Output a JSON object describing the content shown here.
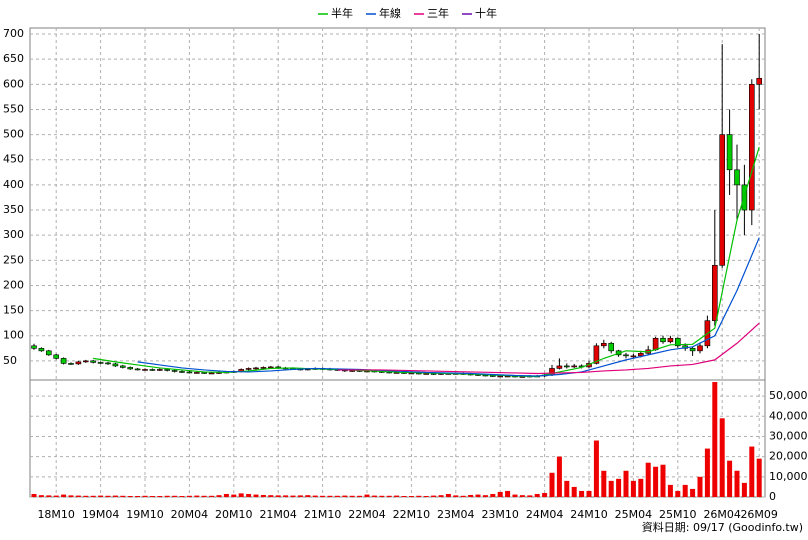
{
  "chart_data": {
    "type": "candlestick",
    "categories": [
      null,
      null,
      null,
      "18M10",
      null,
      null,
      null,
      null,
      null,
      "19M04",
      null,
      null,
      null,
      null,
      null,
      "19M10",
      null,
      null,
      null,
      null,
      null,
      "20M04",
      null,
      null,
      null,
      null,
      null,
      "20M10",
      null,
      null,
      null,
      null,
      null,
      "21M04",
      null,
      null,
      null,
      null,
      null,
      "21M10",
      null,
      null,
      null,
      null,
      null,
      "22M04",
      null,
      null,
      null,
      null,
      null,
      "22M10",
      null,
      null,
      null,
      null,
      null,
      "23M04",
      null,
      null,
      null,
      null,
      null,
      "23M10",
      null,
      null,
      null,
      null,
      null,
      "24M04",
      null,
      null,
      null,
      null,
      null,
      "24M10",
      null,
      null,
      null,
      null,
      null,
      "25M04",
      null,
      null,
      null,
      null,
      null,
      "25M10",
      null,
      null,
      null,
      null,
      null,
      "26M04",
      null,
      null,
      null,
      null,
      "26M09"
    ],
    "open": [
      80,
      75,
      70,
      62,
      55,
      45,
      44,
      48,
      50,
      47,
      46,
      44,
      40,
      37,
      34,
      33,
      33,
      32,
      33,
      31,
      29,
      28,
      27,
      27,
      26,
      26,
      27,
      28,
      29,
      33,
      35,
      36,
      37,
      38,
      36,
      35,
      34,
      33,
      34,
      35,
      34,
      33,
      32,
      30,
      31,
      30,
      30,
      29,
      28,
      27,
      27,
      26,
      26,
      25,
      25,
      24,
      25,
      25,
      25,
      24,
      23,
      22,
      21,
      20,
      20,
      20,
      19,
      19,
      20,
      20,
      22,
      35,
      40,
      38,
      40,
      38,
      45,
      80,
      85,
      70,
      62,
      60,
      60,
      65,
      72,
      95,
      88,
      95,
      80,
      75,
      70,
      80,
      130,
      240,
      500,
      430,
      400,
      350,
      600
    ],
    "high": [
      84,
      77,
      72,
      64,
      57,
      47,
      50,
      52,
      52,
      49,
      48,
      46,
      42,
      39,
      36,
      35,
      35,
      35,
      35,
      33,
      31,
      30,
      29,
      29,
      28,
      29,
      30,
      31,
      35,
      37,
      38,
      39,
      40,
      40,
      38,
      37,
      36,
      36,
      37,
      37,
      36,
      35,
      34,
      33,
      33,
      32,
      32,
      31,
      30,
      29,
      29,
      28,
      28,
      27,
      27,
      27,
      27,
      27,
      27,
      26,
      25,
      24,
      23,
      22,
      22,
      22,
      21,
      22,
      22,
      25,
      42,
      55,
      45,
      44,
      43,
      50,
      85,
      92,
      88,
      72,
      66,
      64,
      70,
      80,
      98,
      100,
      100,
      97,
      85,
      78,
      85,
      140,
      350,
      680,
      550,
      480,
      440,
      610,
      700
    ],
    "low": [
      72,
      68,
      60,
      53,
      43,
      42,
      42,
      46,
      45,
      44,
      42,
      38,
      35,
      32,
      31,
      31,
      30,
      30,
      29,
      27,
      26,
      25,
      25,
      24,
      24,
      24,
      25,
      26,
      27,
      31,
      33,
      34,
      35,
      34,
      33,
      32,
      31,
      31,
      32,
      32,
      31,
      30,
      28,
      28,
      28,
      28,
      27,
      26,
      25,
      25,
      24,
      24,
      23,
      23,
      22,
      22,
      23,
      23,
      22,
      21,
      20,
      19,
      18,
      18,
      18,
      17,
      17,
      17,
      18,
      18,
      20,
      33,
      35,
      36,
      35,
      35,
      43,
      75,
      65,
      58,
      55,
      55,
      57,
      62,
      70,
      84,
      85,
      76,
      70,
      60,
      65,
      75,
      120,
      235,
      380,
      330,
      300,
      320,
      550
    ],
    "close": [
      75,
      70,
      62,
      55,
      45,
      44,
      48,
      50,
      47,
      46,
      44,
      40,
      37,
      34,
      33,
      33,
      32,
      33,
      31,
      29,
      28,
      27,
      27,
      26,
      26,
      27,
      28,
      29,
      33,
      35,
      36,
      37,
      38,
      36,
      35,
      34,
      33,
      34,
      35,
      34,
      33,
      32,
      30,
      31,
      30,
      30,
      29,
      28,
      27,
      27,
      26,
      26,
      25,
      25,
      24,
      25,
      25,
      25,
      24,
      23,
      22,
      21,
      20,
      20,
      20,
      19,
      19,
      20,
      20,
      22,
      35,
      40,
      38,
      40,
      38,
      45,
      80,
      85,
      70,
      62,
      60,
      60,
      65,
      72,
      95,
      88,
      95,
      80,
      75,
      70,
      80,
      130,
      240,
      500,
      430,
      400,
      350,
      600,
      612
    ],
    "up_color": "#e00000",
    "down_color": "#00cc00",
    "ylim": [
      12,
      712
    ],
    "yticks": [
      50,
      100,
      150,
      200,
      250,
      300,
      350,
      400,
      450,
      500,
      550,
      600,
      650,
      700
    ],
    "grid": true,
    "series": [
      {
        "name": "半年",
        "color": "#00c000",
        "x": [
          8,
          11,
          14,
          17,
          20,
          23,
          26,
          29,
          32,
          35,
          38,
          41,
          44,
          47,
          50,
          53,
          56,
          59,
          62,
          65,
          68,
          71,
          74,
          77,
          80,
          83,
          86,
          89,
          92,
          95,
          98
        ],
        "values": [
          55,
          48,
          42,
          36,
          32,
          28,
          27,
          30,
          35,
          36,
          34,
          33,
          31,
          29,
          27,
          26,
          25,
          24,
          22,
          20,
          19,
          28,
          37,
          55,
          70,
          68,
          82,
          83,
          115,
          330,
          475
        ]
      },
      {
        "name": "年線",
        "color": "#0050d0",
        "x": [
          14,
          17,
          20,
          23,
          26,
          29,
          32,
          35,
          38,
          41,
          44,
          47,
          50,
          53,
          56,
          59,
          62,
          65,
          68,
          71,
          74,
          77,
          80,
          83,
          86,
          89,
          92,
          95,
          98
        ],
        "values": [
          48,
          42,
          36,
          32,
          29,
          28,
          30,
          33,
          35,
          34,
          33,
          31,
          29,
          27,
          26,
          25,
          23,
          21,
          20,
          23,
          28,
          40,
          52,
          62,
          72,
          78,
          100,
          190,
          295
        ]
      },
      {
        "name": "三年",
        "color": "#e0007a",
        "x": [
          41,
          44,
          47,
          50,
          53,
          56,
          59,
          62,
          65,
          68,
          71,
          74,
          77,
          80,
          83,
          86,
          89,
          92,
          95,
          98
        ],
        "values": [
          32,
          32,
          32,
          31,
          30,
          29,
          28,
          27,
          26,
          25,
          26,
          27,
          30,
          32,
          35,
          40,
          43,
          52,
          85,
          125
        ]
      },
      {
        "name": "十年",
        "color": "#6a0dad",
        "x": [],
        "values": []
      }
    ],
    "volume": {
      "color": "#ee0000",
      "ylim": [
        0,
        58000
      ],
      "yticks": [
        0,
        {
          "value": 10000,
          "label": "10,000"
        },
        {
          "value": 20000,
          "label": "20,000"
        },
        {
          "value": 30000,
          "label": "30,000"
        },
        {
          "value": 40000,
          "label": "40,000"
        },
        {
          "value": 50000,
          "label": "50,000"
        }
      ],
      "values": [
        1500,
        900,
        800,
        700,
        1200,
        800,
        700,
        600,
        600,
        700,
        600,
        700,
        600,
        500,
        500,
        600,
        500,
        500,
        600,
        600,
        500,
        600,
        700,
        600,
        600,
        900,
        1500,
        1200,
        1800,
        1500,
        1200,
        1000,
        900,
        800,
        800,
        700,
        800,
        900,
        700,
        600,
        600,
        600,
        700,
        600,
        600,
        1200,
        700,
        600,
        600,
        700,
        500,
        500,
        600,
        500,
        700,
        900,
        1500,
        800,
        600,
        1000,
        1200,
        900,
        1500,
        2500,
        3000,
        1200,
        900,
        800,
        1500,
        2000,
        12000,
        20000,
        8000,
        5000,
        3000,
        3000,
        28000,
        13000,
        8000,
        9000,
        13000,
        8000,
        9000,
        17000,
        15000,
        16000,
        6000,
        3000,
        6000,
        4000,
        10000,
        24000,
        57000,
        39000,
        18000,
        13000,
        7000,
        25000,
        19000
      ]
    },
    "source": "資料日期: 09/17 (Goodinfo.tw)"
  }
}
